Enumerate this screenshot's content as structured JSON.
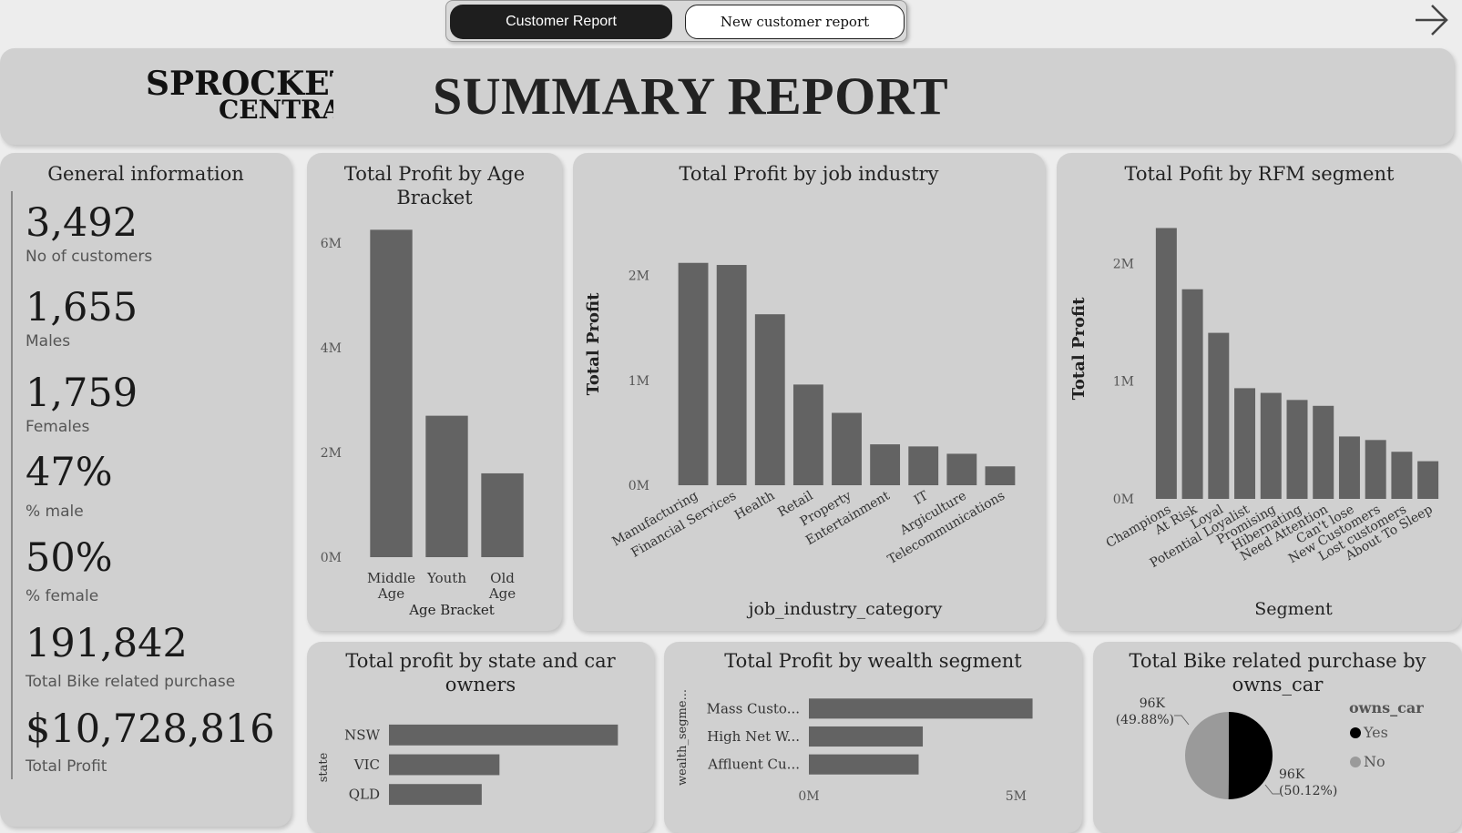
{
  "nav": {
    "tabs": [
      {
        "label": "Customer Report",
        "active": true
      },
      {
        "label": "New customer report",
        "active": false
      }
    ],
    "next_icon": "arrow-right-icon"
  },
  "header": {
    "logo_line1": "SPROCKET",
    "logo_line2": "CENTRAL",
    "title": "SUMMARY REPORT"
  },
  "general": {
    "title": "General information",
    "kpis": [
      {
        "value": "3,492",
        "label": "No of customers"
      },
      {
        "value": "1,655",
        "label": "Males"
      },
      {
        "value": "1,759",
        "label": "Females"
      },
      {
        "value": "47%",
        "label": "% male"
      },
      {
        "value": "50%",
        "label": "% female"
      },
      {
        "value": "191,842",
        "label": "Total Bike related purchase"
      },
      {
        "value": "$10,728,816",
        "label": "Total Profit"
      }
    ]
  },
  "colors": {
    "bar": "#636363",
    "card": "#d0d0d0",
    "pie_yes": "#000000",
    "pie_no": "#9a9a9a"
  },
  "chart_data": [
    {
      "id": "age",
      "type": "bar",
      "title": "Total Profit by Age Bracket",
      "xlabel": "Age Bracket",
      "ylabel": "",
      "categories": [
        [
          "Middle",
          "Age"
        ],
        [
          "Youth"
        ],
        [
          "Old",
          "Age"
        ]
      ],
      "values": [
        6.25,
        2.7,
        1.6
      ],
      "ylim": [
        0,
        6.5
      ],
      "yticks": [
        0,
        2,
        4,
        6
      ],
      "tick_labels": [
        "0M",
        "2M",
        "4M",
        "6M"
      ]
    },
    {
      "id": "industry",
      "type": "bar",
      "title": "Total Profit by job industry",
      "xlabel": "job_industry_category",
      "ylabel": "Total Profit",
      "categories": [
        "Manufacturing",
        "Financial Services",
        "Health",
        "Retail",
        "Property",
        "Entertainment",
        "IT",
        "Argiculture",
        "Telecommunications"
      ],
      "values": [
        2.12,
        2.1,
        1.63,
        0.96,
        0.69,
        0.39,
        0.37,
        0.3,
        0.18
      ],
      "ylim": [
        0,
        2.3
      ],
      "yticks": [
        0,
        1,
        2
      ],
      "tick_labels": [
        "0M",
        "1M",
        "2M"
      ]
    },
    {
      "id": "rfm",
      "type": "bar",
      "title": "Total Pofit by RFM segment",
      "xlabel": "Segment",
      "ylabel": "Total Profit",
      "categories": [
        "Champions",
        "At Risk",
        "Loyal",
        "Potential Loyalist",
        "Promising",
        "Hibernating",
        "Need Attention",
        "Can't lose",
        "New Customers",
        "Lost customers",
        "About To Sleep"
      ],
      "values": [
        2.3,
        1.78,
        1.41,
        0.94,
        0.9,
        0.84,
        0.79,
        0.53,
        0.5,
        0.4,
        0.32
      ],
      "ylim": [
        0,
        2.35
      ],
      "yticks": [
        0,
        1,
        2
      ],
      "tick_labels": [
        "0M",
        "1M",
        "2M"
      ]
    },
    {
      "id": "state",
      "type": "bar",
      "orientation": "horizontal",
      "title": "Total profit by state and car owners",
      "ylabel": "state",
      "categories": [
        "NSW",
        "VIC",
        "QLD"
      ],
      "values": [
        5.8,
        2.8,
        2.35
      ],
      "xlim": [
        0,
        6
      ]
    },
    {
      "id": "wealth",
      "type": "bar",
      "orientation": "horizontal",
      "title": "Total Profit by wealth segment",
      "ylabel": "wealth_segme...",
      "categories": [
        "Mass Custo...",
        "High Net W...",
        "Affluent Cu..."
      ],
      "values": [
        5.4,
        2.75,
        2.65
      ],
      "xlim": [
        0,
        5.3
      ],
      "xticks": [
        0,
        5
      ],
      "tick_labels": [
        "0M",
        "5M"
      ]
    },
    {
      "id": "car",
      "type": "pie",
      "title": "Total Bike related purchase by owns_car",
      "legend_title": "owns_car",
      "slices": [
        {
          "label": "Yes",
          "value": 96.2,
          "value_label": "96K",
          "pct_label": "(50.12%)"
        },
        {
          "label": "No",
          "value": 95.7,
          "value_label": "96K",
          "pct_label": "(49.88%)"
        }
      ]
    }
  ]
}
